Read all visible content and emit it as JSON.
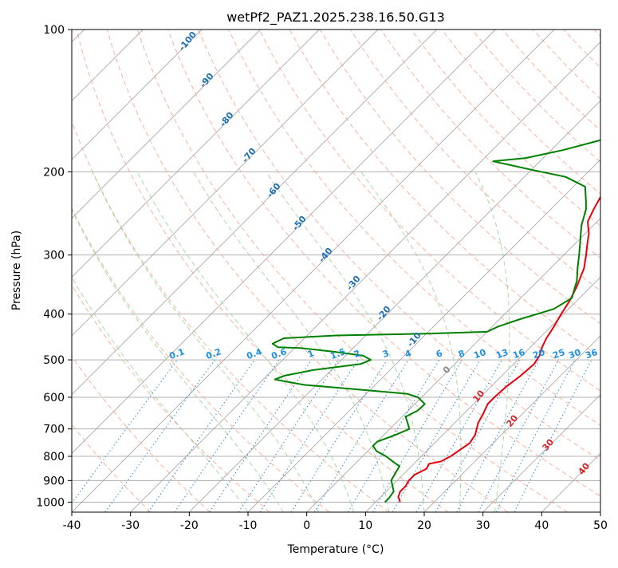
{
  "chart_data": {
    "type": "line",
    "chart_kind": "skew-T log-P diagram",
    "title": "wetPf2_PAZ1.2025.238.16.50.G13",
    "xlabel": "Temperature (°C)",
    "ylabel": "Pressure (hPa)",
    "xlim": [
      -40,
      50
    ],
    "ylim": [
      1050,
      100
    ],
    "y_scale": "log",
    "grid": true,
    "x_ticks": [
      -40,
      -30,
      -20,
      -10,
      0,
      10,
      20,
      30,
      40,
      50
    ],
    "y_ticks": [
      1000,
      900,
      800,
      700,
      600,
      500,
      400,
      300,
      200,
      100
    ],
    "series": [
      {
        "color": "#e8000b",
        "role": "temperature",
        "points": [
          [
            14.2,
            1000
          ],
          [
            13.0,
            975
          ],
          [
            12.4,
            950
          ],
          [
            12.4,
            925
          ],
          [
            12.0,
            900
          ],
          [
            12.0,
            875
          ],
          [
            13.0,
            850
          ],
          [
            12.6,
            830
          ],
          [
            14.2,
            820
          ],
          [
            15.0,
            800
          ],
          [
            16.0,
            750
          ],
          [
            15.5,
            720
          ],
          [
            14.0,
            680
          ],
          [
            13.3,
            650
          ],
          [
            12.4,
            620
          ],
          [
            12.4,
            600
          ],
          [
            12.6,
            570
          ],
          [
            13.2,
            540
          ],
          [
            13.5,
            510
          ],
          [
            13.0,
            490
          ],
          [
            12.0,
            470
          ],
          [
            11.2,
            450
          ],
          [
            10.5,
            425
          ],
          [
            9.6,
            400
          ],
          [
            8.8,
            375
          ],
          [
            7.6,
            350
          ],
          [
            5.7,
            320
          ],
          [
            3.8,
            300
          ],
          [
            2.2,
            285
          ],
          [
            0.6,
            270
          ],
          [
            -1.6,
            255
          ],
          [
            -2.7,
            240
          ],
          [
            -3.7,
            225
          ],
          [
            -3.8,
            210
          ],
          [
            -2.5,
            205
          ],
          [
            0.5,
            200
          ],
          [
            6.0,
            195
          ],
          [
            7.8,
            180
          ],
          [
            8.0,
            175
          ],
          [
            8.0,
            168
          ],
          [
            8.5,
            160
          ],
          [
            9.0,
            150
          ],
          [
            10.5,
            140
          ],
          [
            12.5,
            130
          ],
          [
            14.5,
            120
          ],
          [
            16.5,
            112
          ],
          [
            18.0,
            105
          ],
          [
            19.0,
            100
          ]
        ]
      },
      {
        "color": "#008000",
        "role": "dewpoint",
        "points": [
          [
            11.6,
            1000
          ],
          [
            11.6,
            980
          ],
          [
            11.3,
            950
          ],
          [
            10.2,
            925
          ],
          [
            9.0,
            900
          ],
          [
            8.3,
            860
          ],
          [
            8.0,
            840
          ],
          [
            6.0,
            820
          ],
          [
            4.0,
            800
          ],
          [
            1.5,
            780
          ],
          [
            0.0,
            760
          ],
          [
            0.0,
            745
          ],
          [
            2.0,
            720
          ],
          [
            3.3,
            700
          ],
          [
            2.0,
            680
          ],
          [
            0.6,
            660
          ],
          [
            1.6,
            640
          ],
          [
            1.7,
            620
          ],
          [
            -0.6,
            600
          ],
          [
            -3.0,
            590
          ],
          [
            -14.0,
            575
          ],
          [
            -22.0,
            565
          ],
          [
            -26.0,
            555
          ],
          [
            -28.0,
            550
          ],
          [
            -27.0,
            540
          ],
          [
            -23.0,
            525
          ],
          [
            -16.0,
            510
          ],
          [
            -15.0,
            500
          ],
          [
            -17.0,
            490
          ],
          [
            -23.0,
            480
          ],
          [
            -29.0,
            472
          ],
          [
            -33.0,
            470
          ],
          [
            -34.5,
            462
          ],
          [
            -33.5,
            450
          ],
          [
            -25.0,
            444
          ],
          [
            -10.0,
            440
          ],
          [
            0.0,
            436
          ],
          [
            1.0,
            425
          ],
          [
            3.5,
            410
          ],
          [
            5.5,
            400
          ],
          [
            7.5,
            390
          ],
          [
            8.7,
            370
          ],
          [
            6.6,
            340
          ],
          [
            4.6,
            320
          ],
          [
            2.6,
            300
          ],
          [
            0.4,
            280
          ],
          [
            -2.0,
            260
          ],
          [
            -4.0,
            240
          ],
          [
            -5.5,
            230
          ],
          [
            -8.0,
            215
          ],
          [
            -13.0,
            205
          ],
          [
            -20.0,
            198
          ],
          [
            -26.0,
            192
          ],
          [
            -28.0,
            190
          ],
          [
            -23.0,
            187
          ],
          [
            -18.0,
            180
          ],
          [
            -12.5,
            170
          ],
          [
            -11.5,
            160
          ],
          [
            -12.0,
            150
          ],
          [
            -13.5,
            145
          ],
          [
            -14.5,
            140
          ],
          [
            -11.0,
            132
          ],
          [
            -9.2,
            120
          ],
          [
            -7.0,
            113
          ],
          [
            -4.0,
            106
          ],
          [
            -2.0,
            100
          ]
        ]
      }
    ],
    "dry_adiabat_labels": [
      "-100",
      "-90",
      "-80",
      "-70",
      "-60",
      "-50",
      "-40",
      "-30",
      "-20",
      "-10",
      "0",
      "10",
      "20",
      "30",
      "40"
    ],
    "mixing_ratio_labels": [
      "0.1",
      "0.2",
      "0.4",
      "0.6",
      "1",
      "1.5",
      "2",
      "3",
      "4",
      "6",
      "8",
      "10",
      "13",
      "16",
      "20",
      "25",
      "30",
      "36"
    ],
    "background_line_colors": {
      "isotherm": "#a0a0a0",
      "dry_adiabat": "#f7a48b",
      "moist_adiabat": "#9fd49f",
      "mixing_ratio": "#3a8fd8",
      "grid": "#b0b0b0"
    }
  }
}
